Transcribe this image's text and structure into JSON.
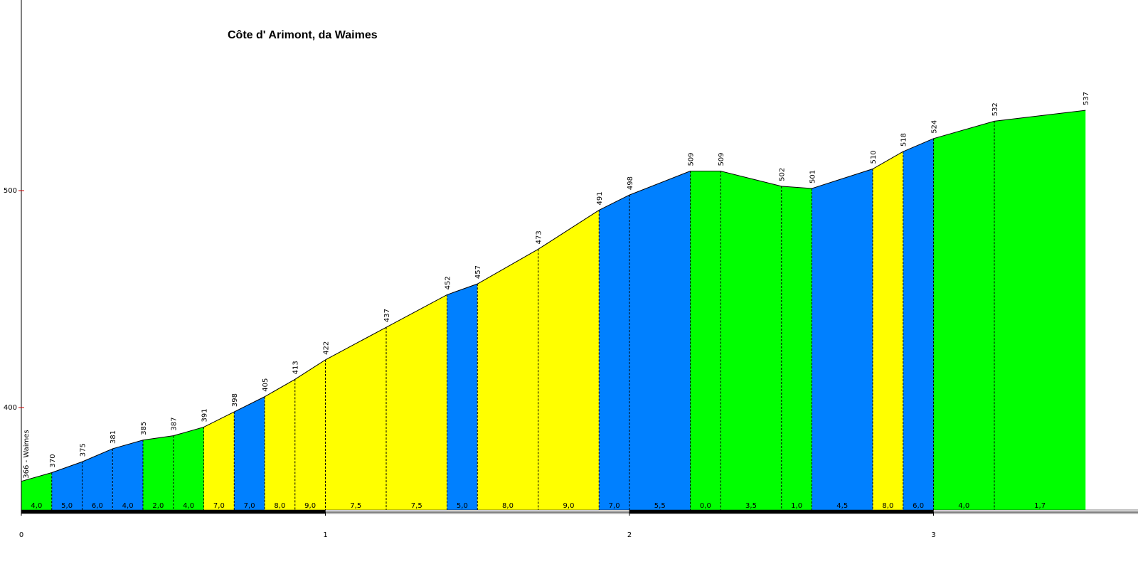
{
  "chart_data": {
    "type": "area",
    "title": "Côte d' Arimont, da Waimes",
    "x_unit": "km",
    "xlim": [
      0,
      3.75
    ],
    "ylim": [
      350,
      590
    ],
    "x_ticks": [
      "0",
      "1",
      "2",
      "3"
    ],
    "y_ticks": [
      "400",
      "500"
    ],
    "start_label": "366 - Waimes",
    "points": [
      {
        "x": 0.0,
        "y": 366
      },
      {
        "x": 0.1,
        "y": 370
      },
      {
        "x": 0.2,
        "y": 375
      },
      {
        "x": 0.3,
        "y": 381
      },
      {
        "x": 0.4,
        "y": 385
      },
      {
        "x": 0.5,
        "y": 387
      },
      {
        "x": 0.6,
        "y": 391
      },
      {
        "x": 0.7,
        "y": 398
      },
      {
        "x": 0.8,
        "y": 405
      },
      {
        "x": 0.9,
        "y": 413
      },
      {
        "x": 1.0,
        "y": 422
      },
      {
        "x": 1.2,
        "y": 437
      },
      {
        "x": 1.4,
        "y": 452
      },
      {
        "x": 1.5,
        "y": 457
      },
      {
        "x": 1.7,
        "y": 473
      },
      {
        "x": 1.9,
        "y": 491
      },
      {
        "x": 2.0,
        "y": 498
      },
      {
        "x": 2.2,
        "y": 509
      },
      {
        "x": 2.3,
        "y": 509
      },
      {
        "x": 2.5,
        "y": 502
      },
      {
        "x": 2.6,
        "y": 501
      },
      {
        "x": 2.8,
        "y": 510
      },
      {
        "x": 2.9,
        "y": 518
      },
      {
        "x": 3.0,
        "y": 524
      },
      {
        "x": 3.2,
        "y": 532
      },
      {
        "x": 3.5,
        "y": 537
      }
    ],
    "gradients": [
      "4,0",
      "5,0",
      "6,0",
      "4,0",
      "2,0",
      "4,0",
      "7,0",
      "7,0",
      "8,0",
      "9,0",
      "7,5",
      "7,5",
      "5,0",
      "8,0",
      "9,0",
      "7,0",
      "5,5",
      "0,0",
      "3,5",
      "1,0",
      "4,5",
      "8,0",
      "6,0",
      "4,0",
      "1,7"
    ],
    "segment_colors": [
      "green",
      "blue",
      "blue",
      "blue",
      "green",
      "green",
      "yellow",
      "blue",
      "yellow",
      "yellow",
      "yellow",
      "yellow",
      "blue",
      "yellow",
      "yellow",
      "blue",
      "blue",
      "green",
      "green",
      "green",
      "blue",
      "yellow",
      "blue",
      "green",
      "green"
    ],
    "palette": {
      "green": "#00ff00",
      "blue": "#0080ff",
      "yellow": "#ffff00"
    }
  }
}
